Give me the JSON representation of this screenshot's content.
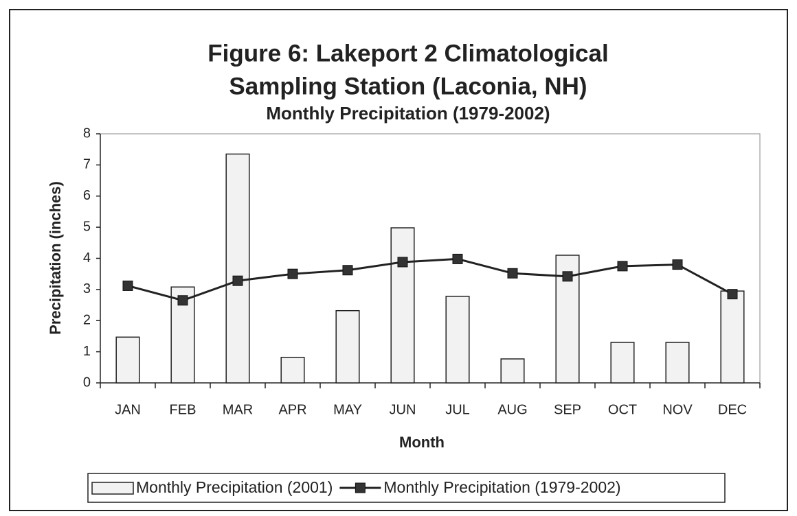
{
  "chart_data": {
    "type": "bar_line",
    "title": [
      "Figure 6: Lakeport 2 Climatological",
      "Sampling Station (Laconia, NH)"
    ],
    "subtitle": "Monthly Precipitation (1979-2002)",
    "y_label": "Precipitation (inches)",
    "x_label": "Month",
    "categories": [
      "JAN",
      "FEB",
      "MAR",
      "APR",
      "MAY",
      "JUN",
      "JUL",
      "AUG",
      "SEP",
      "OCT",
      "NOV",
      "DEC"
    ],
    "series": [
      {
        "name": "Monthly Precipitation (2001)",
        "kind": "bar",
        "color": "#f2f2f2",
        "values": [
          1.47,
          3.08,
          7.35,
          0.82,
          2.32,
          4.98,
          2.78,
          0.77,
          4.1,
          1.3,
          1.3,
          2.95
        ]
      },
      {
        "name": "Monthly Precipitation (1979-2002)",
        "kind": "line",
        "color": "#333333",
        "values": [
          3.12,
          2.65,
          3.28,
          3.5,
          3.62,
          3.88,
          3.98,
          3.52,
          3.42,
          3.75,
          3.8,
          2.85
        ]
      }
    ],
    "ylim": [
      0,
      8
    ],
    "yticks": [
      0,
      1,
      2,
      3,
      4,
      5,
      6,
      7,
      8
    ],
    "legend": "bottom"
  }
}
